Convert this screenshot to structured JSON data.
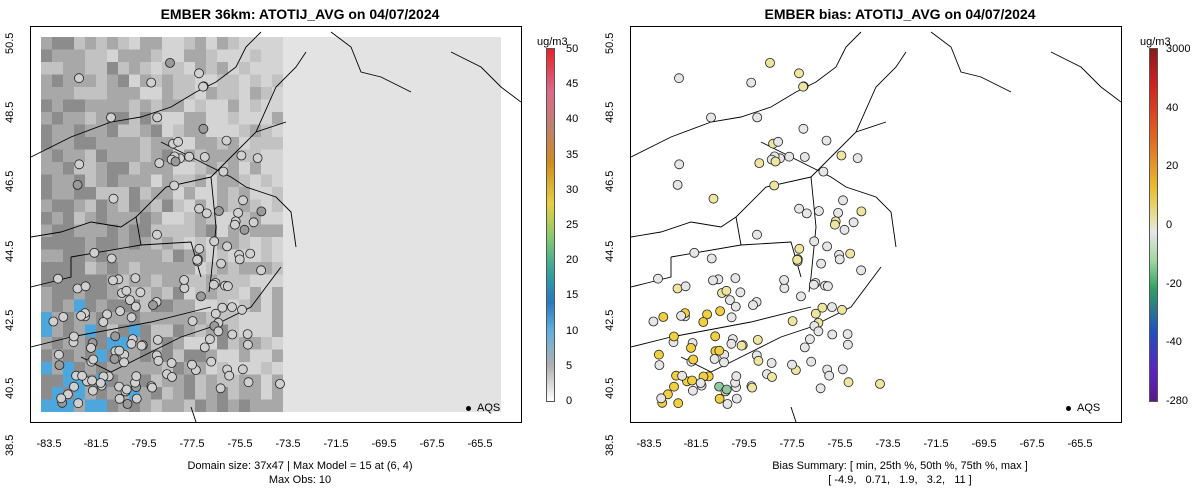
{
  "left": {
    "title": "EMBER 36km: ATOTIJ_AVG on 04/07/2024",
    "units": "ug/m3",
    "colorbar_labels": [
      "50",
      "45",
      "40",
      "35",
      "30",
      "25",
      "20",
      "15",
      "10",
      "5",
      "0"
    ],
    "caption_line1": "Domain size: 37x47 | Max Model = 15 at (6, 4)",
    "caption_line2": "Max Obs: 10",
    "legend_label": "AQS"
  },
  "right": {
    "title": "EMBER bias: ATOTIJ_AVG on 04/07/2024",
    "units": "ug/m3",
    "colorbar_labels": [
      "3000",
      "40",
      "20",
      "0",
      "-20",
      "-40",
      "-280"
    ],
    "caption_line1": "Bias Summary: [ min, 25th %, 50th %, 75th %, max ]",
    "caption_line2": "[ -4.9,   0.71,   1.9,   3.2,   11 ]",
    "legend_label": "AQS"
  },
  "axes": {
    "x_ticks": [
      "-83.5",
      "-81.5",
      "-79.5",
      "-77.5",
      "-75.5",
      "-73.5",
      "-71.5",
      "-69.5",
      "-67.5",
      "-65.5"
    ],
    "y_ticks": [
      "50.5",
      "48.5",
      "46.5",
      "44.5",
      "42.5",
      "40.5",
      "38.5"
    ]
  },
  "colors": {
    "model_low": "#e3e3e3",
    "model_mid": "#9a9a9a",
    "model_high": "#4da6dc",
    "bias_zero": "#e6e6e6",
    "bias_pos": "#f0d040",
    "bias_neg": "#8fc9a0"
  }
}
